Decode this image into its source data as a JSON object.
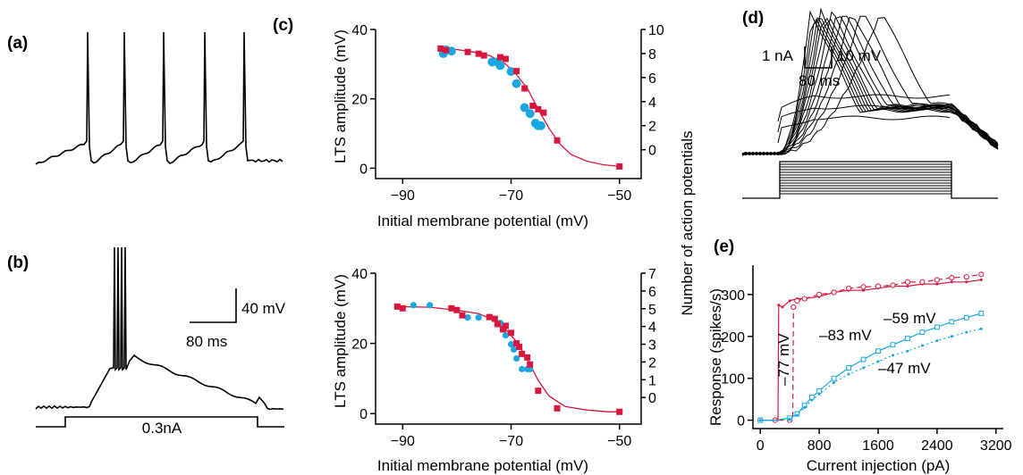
{
  "panels": {
    "a": {
      "label": "(a)"
    },
    "b": {
      "label": "(b)",
      "scalebar_v": "40 mV",
      "scalebar_h": "80 ms",
      "current_label": "0.3nA"
    },
    "c": {
      "label": "(c)",
      "right_axis_label": "Number of action potentials"
    },
    "d": {
      "label": "(d)",
      "scalebar_current": "1 nA",
      "scalebar_voltage": "10 mV",
      "scalebar_time": "80 ms"
    },
    "e": {
      "label": "(e)"
    }
  },
  "chart_data": [
    {
      "id": "c-top",
      "type": "scatter",
      "xlabel": "Initial membrane potential (mV)",
      "ylabel": "LTS amplitude (mV)",
      "y2label": "Number of action potentials",
      "xlim": [
        -95,
        -46
      ],
      "ylim": [
        -3,
        40
      ],
      "y2lim": [
        -2.4,
        10
      ],
      "xticks": [
        -90,
        -70,
        -50
      ],
      "yticks": [
        0,
        20,
        40
      ],
      "y2ticks": [
        0,
        2,
        4,
        6,
        8,
        10
      ],
      "colors": {
        "lts": "#d8173f",
        "ap": "#1aa7e0"
      },
      "series": [
        {
          "values_x": [
            -83,
            -82,
            -78,
            -76,
            -75,
            -72,
            -71,
            -69,
            -67.5,
            -66,
            -65,
            -64,
            -61.5,
            -50
          ],
          "values_y": [
            34.5,
            34,
            33.5,
            33,
            32.5,
            32,
            31.5,
            28,
            23,
            18,
            17,
            16,
            8,
            0.5
          ],
          "fit_x": [
            -83,
            -80,
            -77,
            -74,
            -71,
            -69,
            -67,
            -65,
            -63,
            -61,
            -59,
            -56,
            -53,
            -50
          ],
          "fit_y": [
            34.5,
            34.2,
            33.5,
            32.5,
            30,
            27,
            23,
            17,
            11.5,
            7,
            4,
            2,
            1,
            0.5
          ]
        },
        {
          "values_x": [
            -82.5,
            -82,
            -81,
            -73.5,
            -72.5,
            -72,
            -70,
            -69,
            -67.5,
            -66.5,
            -65.5,
            -65,
            -64.5
          ],
          "values_y": [
            8,
            8.3,
            8.2,
            7.3,
            7.3,
            7,
            6.5,
            5.5,
            3.5,
            3,
            2.2,
            2,
            2
          ]
        }
      ]
    },
    {
      "id": "c-bottom",
      "type": "scatter",
      "xlabel": "Initial membrane potential (mV)",
      "ylabel": "LTS amplitude (mV)",
      "y2label": "Number of action potentials",
      "xlim": [
        -95,
        -46
      ],
      "ylim": [
        -3,
        40
      ],
      "y2lim": [
        -1.5,
        7
      ],
      "xticks": [
        -90,
        -70,
        -50
      ],
      "yticks": [
        0,
        20,
        40
      ],
      "y2ticks": [
        0,
        1,
        2,
        3,
        4,
        5,
        6,
        7
      ],
      "colors": {
        "lts": "#d8173f",
        "ap": "#1aa7e0"
      },
      "series": [
        {
          "values_x": [
            -91,
            -90,
            -81,
            -80,
            -79,
            -74,
            -73,
            -72.5,
            -71.5,
            -71,
            -70,
            -69,
            -68.5,
            -68,
            -67,
            -66.5,
            -65,
            -61.5,
            -50
          ],
          "values_y": [
            30.5,
            30,
            30,
            29.5,
            28,
            27.5,
            27,
            25.5,
            24,
            25,
            23,
            20,
            19,
            17,
            16,
            14,
            6.5,
            1.5,
            0.5
          ],
          "fit_x": [
            -91,
            -85,
            -80,
            -76,
            -73,
            -71,
            -69,
            -67,
            -65,
            -63,
            -60,
            -56,
            -52,
            -50
          ],
          "fit_y": [
            30.5,
            30.3,
            29.5,
            28.5,
            26.5,
            24,
            20.5,
            15.5,
            9.5,
            5,
            2,
            1,
            0.5,
            0.5
          ]
        },
        {
          "values_x": [
            -88,
            -85,
            -78,
            -76,
            -72,
            -71,
            -70,
            -69.5,
            -69,
            -68,
            -67,
            -66.5
          ],
          "values_y": [
            5.2,
            5.2,
            4.5,
            4.5,
            4.2,
            3.5,
            3,
            2.7,
            2.2,
            1.6,
            1.6,
            1.6
          ]
        }
      ]
    },
    {
      "id": "e",
      "type": "line",
      "xlabel": "Current injection (pA)",
      "ylabel": "Response (spikes/s)",
      "xlim": [
        -100,
        3300
      ],
      "ylim": [
        -20,
        370
      ],
      "xticks": [
        0,
        800,
        1600,
        2400,
        3200
      ],
      "yticks": [
        0,
        100,
        200,
        300
      ],
      "annotations": [
        "–77 mV",
        "–83 mV",
        "–59 mV",
        "–47 mV"
      ],
      "colors": {
        "hyper": "#d8173f",
        "depol": "#1aa7e0"
      },
      "series": [
        {
          "name": "–77 mV",
          "x": [
            0,
            100,
            200,
            240,
            250,
            300,
            400,
            500,
            600,
            800,
            1000,
            1200,
            1400,
            1600,
            1800,
            2000,
            2200,
            2400,
            2600,
            2800,
            3000
          ],
          "y": [
            0,
            0,
            0,
            0,
            275,
            270,
            285,
            290,
            290,
            295,
            305,
            310,
            310,
            315,
            320,
            320,
            325,
            325,
            330,
            330,
            335
          ]
        },
        {
          "name": "–83 mV",
          "x": [
            0,
            100,
            200,
            300,
            400,
            440,
            450,
            500,
            600,
            800,
            1000,
            1200,
            1400,
            1600,
            1800,
            2000,
            2200,
            2400,
            2600,
            2800,
            3000
          ],
          "y": [
            0,
            0,
            0,
            0,
            0,
            0,
            270,
            285,
            290,
            300,
            305,
            315,
            318,
            320,
            322,
            330,
            330,
            335,
            340,
            342,
            348
          ]
        },
        {
          "name": "–59 mV",
          "x": [
            0,
            200,
            400,
            500,
            600,
            700,
            800,
            1000,
            1200,
            1400,
            1600,
            1800,
            2000,
            2200,
            2400,
            2600,
            2800,
            3000
          ],
          "y": [
            0,
            0,
            5,
            15,
            35,
            55,
            70,
            100,
            125,
            145,
            165,
            180,
            195,
            210,
            222,
            235,
            245,
            255
          ]
        },
        {
          "name": "–47 mV",
          "x": [
            0,
            200,
            400,
            500,
            600,
            700,
            800,
            1000,
            1200,
            1400,
            1600,
            1800,
            2000,
            2200,
            2400,
            2600,
            2800,
            3000
          ],
          "y": [
            0,
            0,
            3,
            12,
            30,
            48,
            62,
            90,
            110,
            125,
            140,
            155,
            165,
            178,
            190,
            200,
            210,
            218
          ]
        }
      ]
    }
  ]
}
